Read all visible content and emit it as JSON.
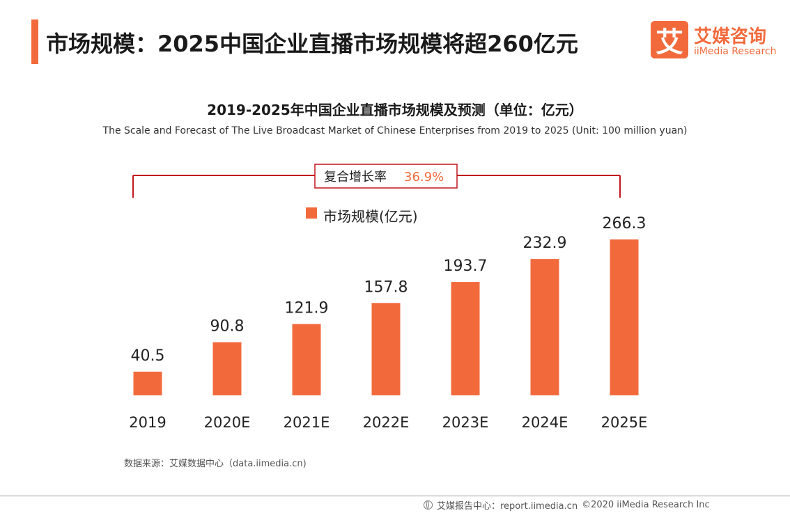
{
  "page": {
    "title": "市场规模：2025中国企业直播市场规模将超260亿元"
  },
  "logo": {
    "mark": "艾",
    "name_cn": "艾媒咨询",
    "name_en": "iiMedia Research"
  },
  "chart_data": {
    "type": "bar",
    "title": "2019-2025年中国企业直播市场规模及预测（单位：亿元）",
    "subtitle": "The Scale and Forecast of The Live Broadcast Market of Chinese Enterprises from 2019 to 2025 (Unit: 100 million yuan)",
    "categories": [
      "2019",
      "2020E",
      "2021E",
      "2022E",
      "2023E",
      "2024E",
      "2025E"
    ],
    "series": [
      {
        "name": "市场规模(亿元)",
        "values": [
          40.5,
          90.8,
          121.9,
          157.8,
          193.7,
          232.9,
          266.3
        ]
      }
    ],
    "data_labels": [
      "40.5",
      "90.8",
      "121.9",
      "157.8",
      "193.7",
      "232.9",
      "266.3"
    ],
    "legend_position": "top-center",
    "grid": false,
    "y_axis_visible": false,
    "annotation": {
      "label": "复合增长率",
      "value": "36.9%",
      "spans": [
        "2019",
        "2025E"
      ]
    },
    "colors": {
      "bar": "#f26a3c",
      "annotation_line": "#c0171c",
      "annotation_value": "#f26a3c"
    }
  },
  "source": "数据来源：艾媒数据中心（data.iimedia.cn)",
  "footer": {
    "report_center": "艾媒报告中心：report.iimedia.cn",
    "copyright": "©2020  iiMedia Research  Inc"
  }
}
